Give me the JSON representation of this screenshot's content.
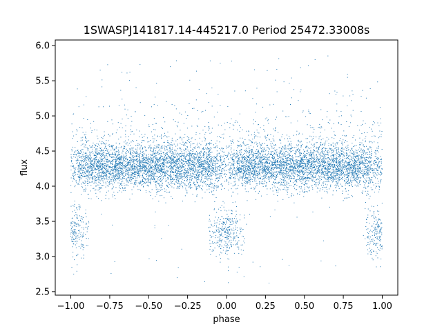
{
  "chart_data": {
    "type": "scatter",
    "title": "1SWASPJ141817.14-445217.0 Period 25472.33008s",
    "xlabel": "phase",
    "ylabel": "flux",
    "xlim": [
      -1.1,
      1.1
    ],
    "ylim": [
      2.45,
      6.08
    ],
    "xticks": [
      -1.0,
      -0.75,
      -0.5,
      -0.25,
      0.0,
      0.25,
      0.5,
      0.75,
      1.0
    ],
    "xtick_labels": [
      "−1.00",
      "−0.75",
      "−0.50",
      "−0.25",
      "0.00",
      "0.25",
      "0.50",
      "0.75",
      "1.00"
    ],
    "yticks": [
      2.5,
      3.0,
      3.5,
      4.0,
      4.5,
      5.0,
      5.5,
      6.0
    ],
    "ytick_labels": [
      "2.5",
      "3.0",
      "3.5",
      "4.0",
      "4.5",
      "5.0",
      "5.5",
      "6.0"
    ],
    "grid": false,
    "legend": "none",
    "series_color": "#1f77b4",
    "distribution": {
      "phase_range": [
        -1.0,
        1.0
      ],
      "baseline_flux": 4.28,
      "baseline_spread": 0.16,
      "eclipse_centers": [
        -1.0,
        0.0,
        1.0
      ],
      "eclipse_flux": 3.35,
      "eclipse_half_width": 0.12,
      "outlier_flux_range": [
        2.6,
        5.9
      ]
    }
  }
}
